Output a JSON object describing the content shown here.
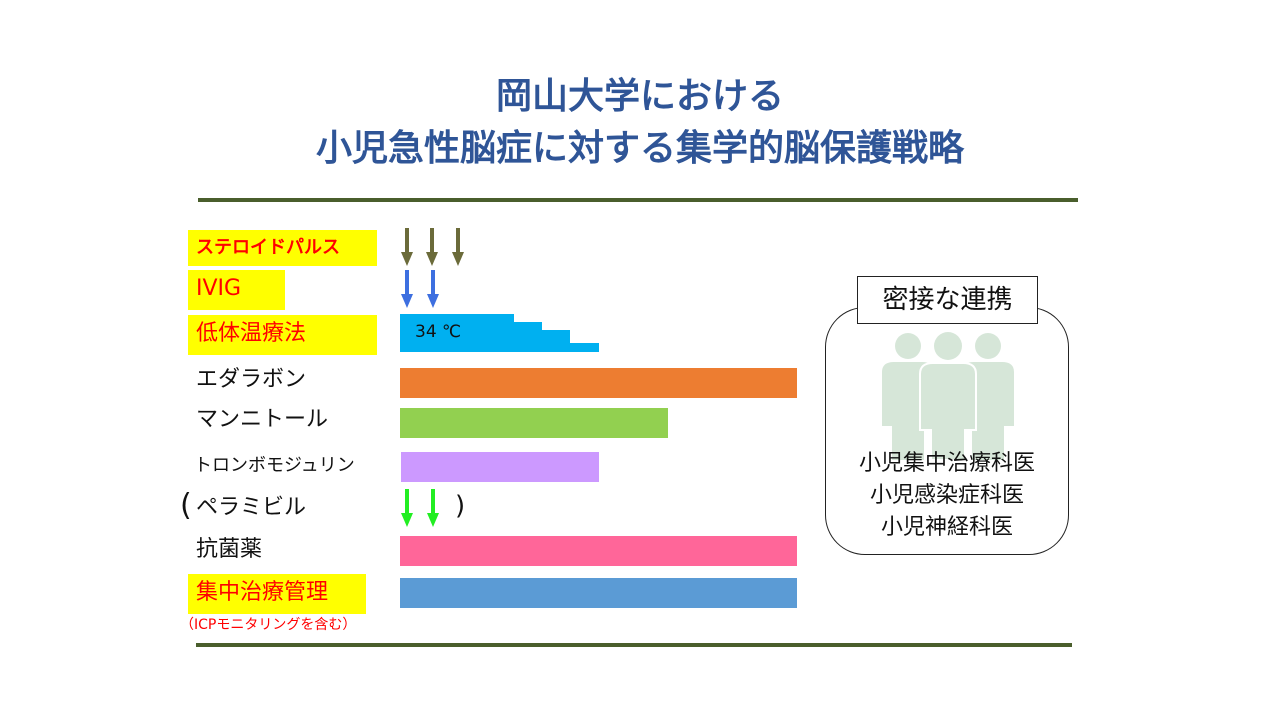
{
  "title": {
    "line1": "岡山大学における",
    "line2": "小児急性脳症に対する集学的脳保護戦略"
  },
  "treatments": {
    "steroid": "ステロイドパルス",
    "ivig": "IVIG",
    "hypothermia": "低体温療法",
    "hypothermia_temp": "34 ℃",
    "edaravone": "エダラボン",
    "mannitol": "マンニトール",
    "thrombomodulin": "トロンボモジュリン",
    "peramivir": "ペラミビル",
    "paren_open": "(",
    "paren_close": ")",
    "antibiotics": "抗菌薬",
    "intensive_care": "集中治療管理",
    "intensive_care_note": "（ICPモニタリングを含む）"
  },
  "collaboration": {
    "title": "密接な連携",
    "roles": [
      "小児集中治療科医",
      "小児感染症科医",
      "小児神経科医"
    ]
  },
  "colors": {
    "title": "#2f5597",
    "highlight": "#ffff00",
    "steroid_arrow": "#6b6b3a",
    "ivig_arrow": "#3d6fe0",
    "peramivir_arrow": "#22ee22",
    "hypothermia": "#00b0f0",
    "edaravone": "#ed7d31",
    "mannitol": "#92d050",
    "thrombomodulin": "#cc99ff",
    "antibiotics": "#ff6699",
    "intensive_care": "#5b9bd5",
    "people": "#d6e6d8"
  },
  "icons": {
    "arrow": "down-arrow-icon",
    "people": "people-group-icon"
  }
}
